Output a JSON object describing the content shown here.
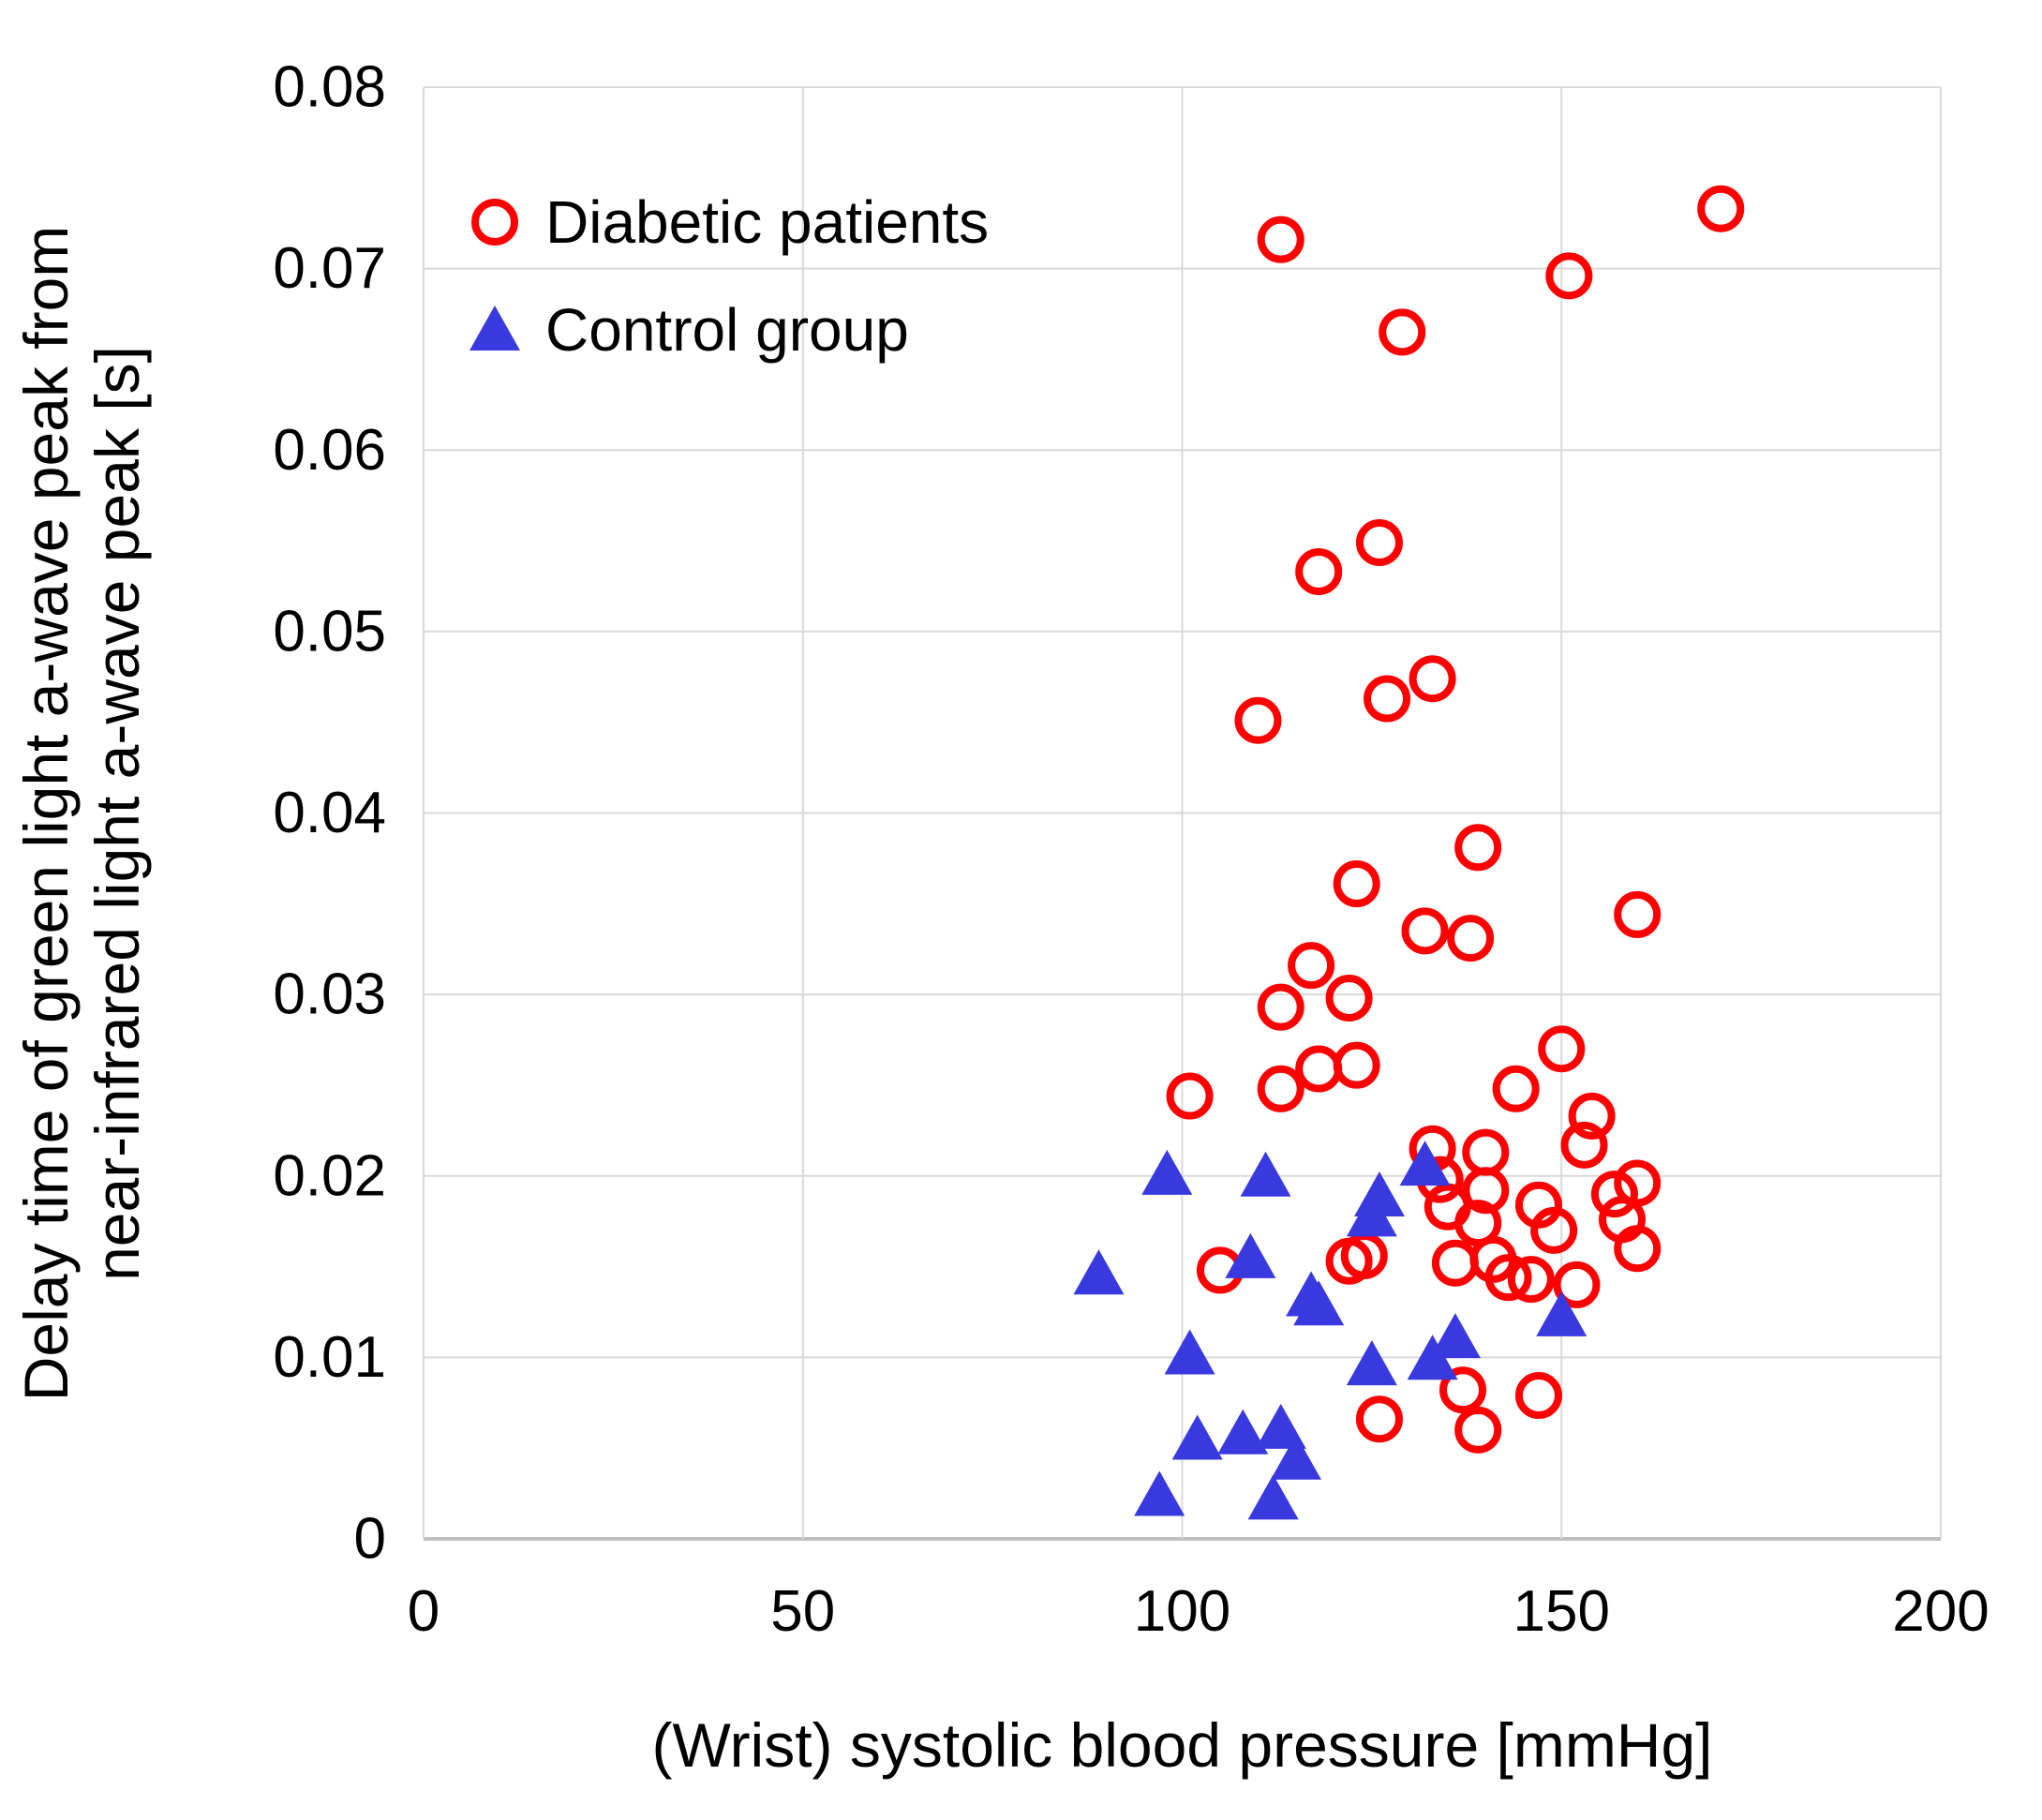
{
  "chart_data": {
    "type": "scatter",
    "title": "",
    "xlabel": "(Wrist) systolic blood pressure [mmHg]",
    "ylabel_lines": [
      "Delay time of green light a-wave peak from",
      "near-infrared light a-wave peak [s]"
    ],
    "xlim": [
      0,
      200
    ],
    "ylim": [
      0,
      0.08
    ],
    "xticks": [
      0,
      50,
      100,
      150,
      200
    ],
    "xtick_labels": [
      "0",
      "50",
      "100",
      "150",
      "200"
    ],
    "yticks": [
      0,
      0.01,
      0.02,
      0.03,
      0.04,
      0.05,
      0.06,
      0.07,
      0.08
    ],
    "ytick_labels": [
      "0",
      "0.01",
      "0.02",
      "0.03",
      "0.04",
      "0.05",
      "0.06",
      "0.07",
      "0.08"
    ],
    "grid": true,
    "legend_position": "top-left-inside",
    "series": [
      {
        "name": "Diabetic patients",
        "marker": "open-circle",
        "color": "#FF0000",
        "points": [
          [
            113,
            0.0716
          ],
          [
            171,
            0.0733
          ],
          [
            151,
            0.0696
          ],
          [
            129,
            0.0665
          ],
          [
            126,
            0.0549
          ],
          [
            118,
            0.0533
          ],
          [
            110,
            0.0451
          ],
          [
            127,
            0.0463
          ],
          [
            133,
            0.0474
          ],
          [
            139,
            0.0381
          ],
          [
            123,
            0.0361
          ],
          [
            132,
            0.0335
          ],
          [
            138,
            0.0331
          ],
          [
            117,
            0.0316
          ],
          [
            122,
            0.0298
          ],
          [
            113,
            0.0293
          ],
          [
            160,
            0.0344
          ],
          [
            150,
            0.027
          ],
          [
            101,
            0.0244
          ],
          [
            113,
            0.0248
          ],
          [
            118,
            0.0259
          ],
          [
            123,
            0.0261
          ],
          [
            144,
            0.0248
          ],
          [
            154,
            0.0233
          ],
          [
            153,
            0.0217
          ],
          [
            133,
            0.0215
          ],
          [
            140,
            0.0213
          ],
          [
            134,
            0.0198
          ],
          [
            140,
            0.0192
          ],
          [
            135,
            0.0183
          ],
          [
            139,
            0.0174
          ],
          [
            147,
            0.0184
          ],
          [
            149,
            0.017
          ],
          [
            157,
            0.019
          ],
          [
            160,
            0.0196
          ],
          [
            158,
            0.0176
          ],
          [
            160,
            0.016
          ],
          [
            136,
            0.0152
          ],
          [
            141,
            0.0154
          ],
          [
            143,
            0.0144
          ],
          [
            146,
            0.0143
          ],
          [
            152,
            0.014
          ],
          [
            122,
            0.0153
          ],
          [
            124,
            0.0156
          ],
          [
            105,
            0.0148
          ],
          [
            147,
            0.0079
          ],
          [
            126,
            0.0066
          ],
          [
            137,
            0.0082
          ],
          [
            139,
            0.006
          ]
        ]
      },
      {
        "name": "Control group",
        "marker": "filled-triangle",
        "color": "#3939E0",
        "points": [
          [
            89,
            0.0146
          ],
          [
            98,
            0.0201
          ],
          [
            111,
            0.02
          ],
          [
            126,
            0.0189
          ],
          [
            125,
            0.0178
          ],
          [
            132,
            0.0206
          ],
          [
            109,
            0.0155
          ],
          [
            117,
            0.0134
          ],
          [
            118,
            0.0129
          ],
          [
            101,
            0.0102
          ],
          [
            125,
            0.0096
          ],
          [
            133,
            0.0099
          ],
          [
            136,
            0.0111
          ],
          [
            150,
            0.0123
          ],
          [
            102,
            0.0055
          ],
          [
            108,
            0.0058
          ],
          [
            113,
            0.0061
          ],
          [
            115,
            0.0044
          ],
          [
            97,
            0.0024
          ],
          [
            112,
            0.0022
          ]
        ]
      }
    ]
  },
  "colors": {
    "background": "#FFFFFF",
    "gridline": "#D9D9D9",
    "axis_line": "#BFBFBF",
    "text": "#000000",
    "diabetic": "#FF0000",
    "control": "#3939E0"
  }
}
